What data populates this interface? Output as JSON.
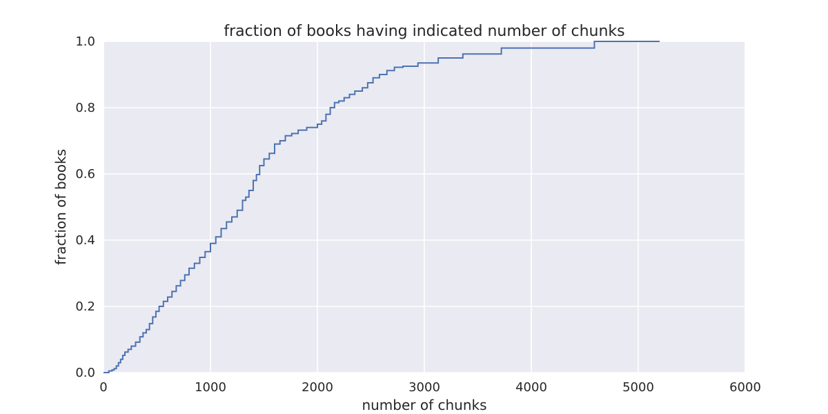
{
  "chart_data": {
    "type": "line",
    "title": "fraction of books having indicated number of chunks",
    "xlabel": "number of chunks",
    "ylabel": "fraction of books",
    "xlim": [
      0,
      6000
    ],
    "ylim": [
      0.0,
      1.0
    ],
    "x_ticks": [
      "0",
      "1000",
      "2000",
      "3000",
      "4000",
      "5000",
      "6000"
    ],
    "y_ticks": [
      "0.0",
      "0.2",
      "0.4",
      "0.6",
      "0.8",
      "1.0"
    ],
    "grid": true,
    "background": "#eaeaf2",
    "grid_color": "#ffffff",
    "colors": {
      "line": "#4c72b0"
    },
    "series": [
      {
        "step": "post",
        "x": [
          0,
          50,
          80,
          100,
          120,
          140,
          160,
          180,
          200,
          230,
          260,
          300,
          340,
          370,
          400,
          430,
          460,
          490,
          520,
          560,
          600,
          640,
          680,
          720,
          760,
          800,
          850,
          900,
          950,
          1000,
          1050,
          1100,
          1150,
          1200,
          1250,
          1300,
          1330,
          1360,
          1400,
          1430,
          1460,
          1500,
          1550,
          1600,
          1650,
          1700,
          1760,
          1820,
          1900,
          2000,
          2040,
          2080,
          2120,
          2160,
          2200,
          2250,
          2300,
          2350,
          2420,
          2470,
          2520,
          2580,
          2650,
          2720,
          2800,
          2940,
          3130,
          3360,
          3720,
          4590,
          5200
        ],
        "y": [
          0.0,
          0.005,
          0.008,
          0.012,
          0.02,
          0.03,
          0.04,
          0.052,
          0.062,
          0.07,
          0.08,
          0.092,
          0.108,
          0.12,
          0.13,
          0.148,
          0.168,
          0.185,
          0.2,
          0.215,
          0.228,
          0.245,
          0.262,
          0.278,
          0.295,
          0.315,
          0.33,
          0.348,
          0.365,
          0.39,
          0.41,
          0.435,
          0.455,
          0.47,
          0.49,
          0.52,
          0.53,
          0.55,
          0.58,
          0.598,
          0.625,
          0.645,
          0.662,
          0.69,
          0.7,
          0.715,
          0.722,
          0.732,
          0.74,
          0.75,
          0.76,
          0.78,
          0.8,
          0.815,
          0.82,
          0.83,
          0.84,
          0.85,
          0.86,
          0.875,
          0.89,
          0.9,
          0.912,
          0.922,
          0.925,
          0.935,
          0.95,
          0.962,
          0.98,
          1.0,
          1.0
        ]
      }
    ]
  }
}
